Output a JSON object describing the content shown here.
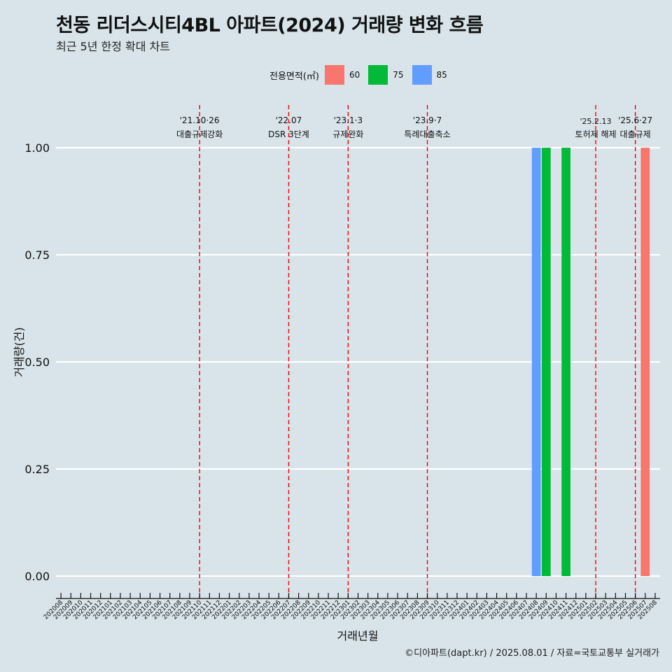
{
  "header": {
    "title": "천동 리더스시티4BL 아파트(2024) 거래량 변화 흐름",
    "subtitle": "최근 5년 한정 확대 차트"
  },
  "legend": {
    "title": "전용면적(㎡)",
    "items": [
      {
        "label": "60",
        "color": "#f8766d"
      },
      {
        "label": "75",
        "color": "#00ba38"
      },
      {
        "label": "85",
        "color": "#619cff"
      }
    ]
  },
  "caption": "©디아파트(dapt.kr) / 2025.08.01 / 자료=국토교통부 실거래가",
  "chart_data": {
    "type": "bar",
    "xlabel": "거래년월",
    "ylabel": "거래량(건)",
    "ylim": [
      0,
      1
    ],
    "yticks": [
      "0.00",
      "0.25",
      "0.50",
      "0.75",
      "1.00"
    ],
    "categories": [
      "202008",
      "202009",
      "202010",
      "202011",
      "202012",
      "202101",
      "202102",
      "202103",
      "202104",
      "202105",
      "202106",
      "202107",
      "202108",
      "202109",
      "202110",
      "202111",
      "202112",
      "202201",
      "202202",
      "202203",
      "202204",
      "202205",
      "202206",
      "202207",
      "202208",
      "202209",
      "202210",
      "202211",
      "202212",
      "202301",
      "202302",
      "202303",
      "202304",
      "202305",
      "202306",
      "202307",
      "202308",
      "202309",
      "202310",
      "202311",
      "202312",
      "202401",
      "202402",
      "202403",
      "202404",
      "202405",
      "202406",
      "202407",
      "202408",
      "202409",
      "202410",
      "202411",
      "202412",
      "202501",
      "202502",
      "202503",
      "202504",
      "202505",
      "202506",
      "202507",
      "202508"
    ],
    "bars": [
      {
        "category": "202408",
        "series": "85",
        "value": 1
      },
      {
        "category": "202409",
        "series": "75",
        "value": 1
      },
      {
        "category": "202411",
        "series": "75",
        "value": 1
      },
      {
        "category": "202507",
        "series": "60",
        "value": 1
      }
    ],
    "events": [
      {
        "category": "202110",
        "line1": "'21.10·26",
        "line2": "대출규제강화"
      },
      {
        "category": "202207",
        "line1": "'22.07",
        "line2": "DSR 3단계"
      },
      {
        "category": "202301",
        "line1": "'23.1·3",
        "line2": "규제완화"
      },
      {
        "category": "202309",
        "line1": "'23.9·7",
        "line2": "특례대출축소"
      },
      {
        "category": "202502",
        "line1": "'25.2.13",
        "line2": "토허제 해제"
      },
      {
        "category": "202506",
        "line1": "'25.6·27",
        "line2": "대출규제"
      }
    ],
    "grid": true
  }
}
